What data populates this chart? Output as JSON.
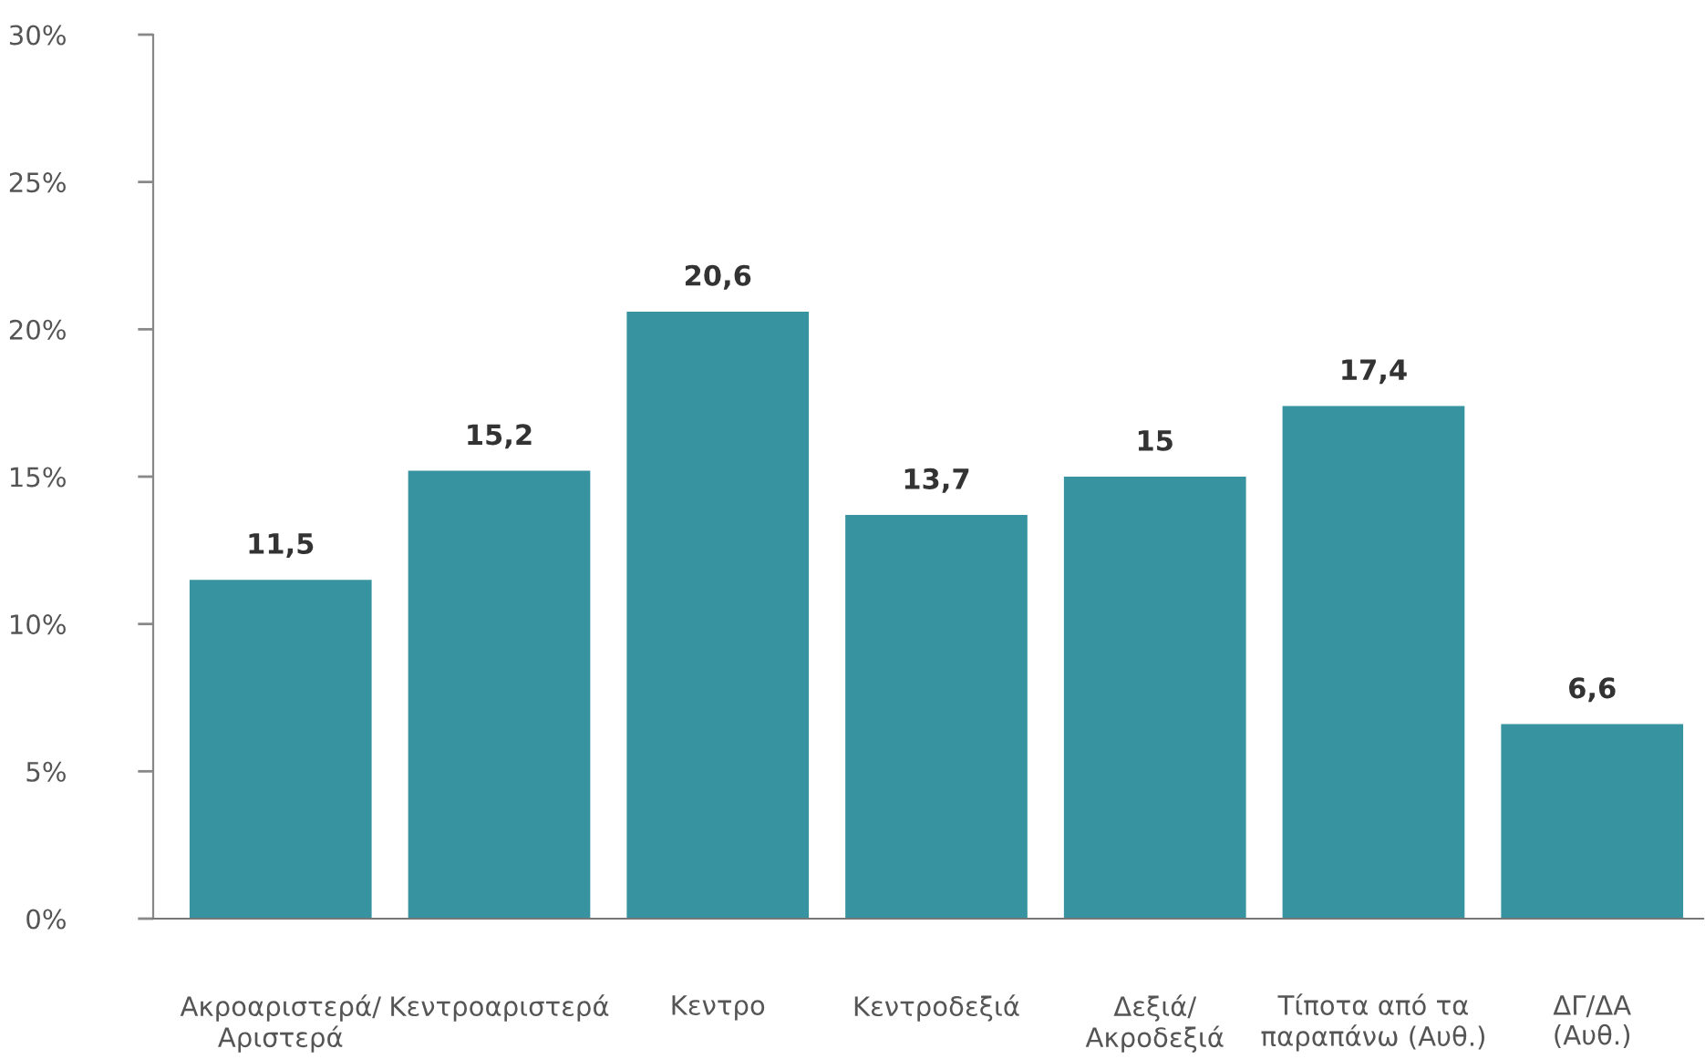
{
  "chart_data": {
    "type": "bar",
    "categories": [
      "Ακροαριστερά/\nΑριστερά",
      "Κεντροαριστερά",
      "Κεντρο",
      "Κεντροδεξιά",
      "Δεξιά/\nΑκροδεξιά",
      "Τίποτα από τα\nπαραπάνω (Αυθ.)",
      "ΔΓ/ΔΑ\n(Αυθ.)"
    ],
    "values": [
      11.5,
      15.2,
      20.6,
      13.7,
      15,
      17.4,
      6.6
    ],
    "value_labels": [
      "11,5",
      "15,2",
      "20,6",
      "13,7",
      "15",
      "17,4",
      "6,6"
    ],
    "color": "#3893a1",
    "ylim": [
      0,
      30
    ],
    "yticks": [
      {
        "value": 0,
        "label": "0%"
      },
      {
        "value": 5,
        "label": "5%"
      },
      {
        "value": 10,
        "label": "10%"
      },
      {
        "value": 15,
        "label": "15%"
      },
      {
        "value": 20,
        "label": "20%"
      },
      {
        "value": 25,
        "label": "25%"
      },
      {
        "value": 30,
        "label": "30%"
      }
    ],
    "grid": false,
    "legend": false
  }
}
